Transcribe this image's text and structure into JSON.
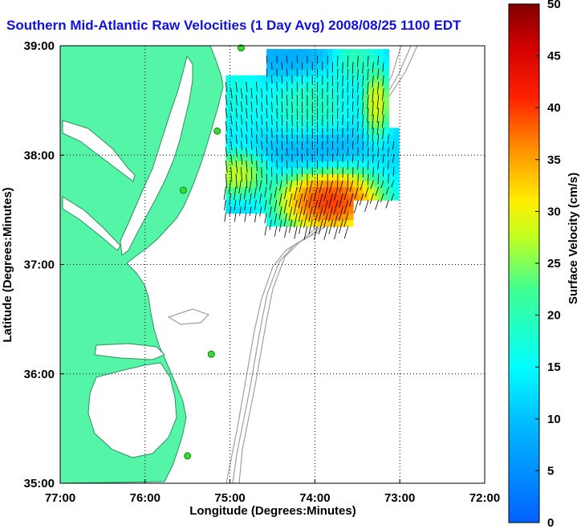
{
  "title": "Southern Mid-Atlantic Raw Velocities (1 Day Avg) 2008/08/25 1100 EDT",
  "xlabel": "Longitude (Degrees:Minutes)",
  "ylabel": "Latitude (Degrees:Minutes)",
  "colorbar_label": "Surface Velocity (cm/s)",
  "x_ticks": [
    "77:00",
    "76:00",
    "75:00",
    "74:00",
    "73:00",
    "72:00"
  ],
  "y_ticks": [
    "39:00",
    "38:00",
    "37:00",
    "36:00",
    "35:00"
  ],
  "colorbar_ticks": [
    "50",
    "45",
    "40",
    "35",
    "30",
    "25",
    "20",
    "15",
    "10",
    "5",
    "0"
  ],
  "colors": {
    "land": "#55f5a8",
    "sea": "#ffffff",
    "bathymetry": "#a0a0a0",
    "station": "#33dd33",
    "title": "#1010e0"
  },
  "chart_data": {
    "type": "heatmap",
    "title": "Southern Mid-Atlantic Raw Velocities (1 Day Avg) 2008/08/25 1100 EDT",
    "xlabel": "Longitude (Degrees:Minutes)",
    "ylabel": "Latitude (Degrees:Minutes)",
    "xlim": [
      -77,
      -72
    ],
    "ylim": [
      35,
      39
    ],
    "grid": true,
    "colorbar": {
      "label": "Surface Velocity (cm/s)",
      "range": [
        0,
        50
      ]
    },
    "stations": [
      {
        "lon": -74.87,
        "lat": 38.98
      },
      {
        "lon": -75.15,
        "lat": 38.22
      },
      {
        "lon": -75.55,
        "lat": 37.68
      },
      {
        "lon": -75.22,
        "lat": 36.18
      },
      {
        "lon": -75.5,
        "lat": 35.25
      }
    ],
    "field_blobs": [
      {
        "lon": -73.85,
        "lat": 37.55,
        "speed": 48,
        "rx": 0.45,
        "ry": 0.22
      },
      {
        "lon": -74.95,
        "lat": 37.8,
        "speed": 32,
        "rx": 0.25,
        "ry": 0.15
      },
      {
        "lon": -73.3,
        "lat": 38.45,
        "speed": 34,
        "rx": 0.12,
        "ry": 0.22
      },
      {
        "lon": -74.1,
        "lat": 38.4,
        "speed": 21,
        "rx": 0.35,
        "ry": 0.3
      },
      {
        "lon": -73.55,
        "lat": 38.85,
        "speed": 22,
        "rx": 0.2,
        "ry": 0.15
      },
      {
        "lon": -74.95,
        "lat": 38.55,
        "speed": 18,
        "rx": 0.25,
        "ry": 0.3
      },
      {
        "lon": -74.3,
        "lat": 38.85,
        "speed": 6,
        "rx": 0.35,
        "ry": 0.15
      },
      {
        "lon": -74.05,
        "lat": 38.05,
        "speed": 6,
        "rx": 0.4,
        "ry": 0.15
      }
    ]
  }
}
